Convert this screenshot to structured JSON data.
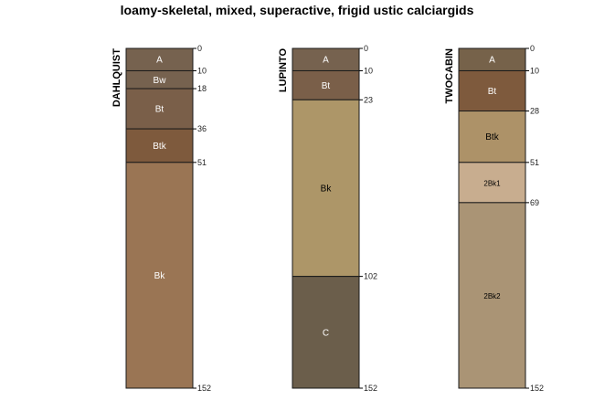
{
  "title": "loamy-skeletal, mixed, superactive, frigid ustic calciargids",
  "profiles": [
    {
      "name": "DAHLQUIST",
      "depth_max": 152,
      "horizons": [
        {
          "label": "A",
          "top": 0,
          "bottom": 10,
          "color": "#76624f",
          "text_color": "#ffffff"
        },
        {
          "label": "Bw",
          "top": 10,
          "bottom": 18,
          "color": "#76624f",
          "text_color": "#ffffff"
        },
        {
          "label": "Bt",
          "top": 18,
          "bottom": 36,
          "color": "#7a5f49",
          "text_color": "#ffffff"
        },
        {
          "label": "Btk",
          "top": 36,
          "bottom": 51,
          "color": "#7e5a3d",
          "text_color": "#ffffff"
        },
        {
          "label": "Bk",
          "top": 51,
          "bottom": 152,
          "color": "#9a7554",
          "text_color": "#ffffff"
        }
      ],
      "depth_ticks": [
        "0",
        "10",
        "18",
        "36",
        "51",
        "152"
      ]
    },
    {
      "name": "LUPINTO",
      "depth_max": 152,
      "horizons": [
        {
          "label": "A",
          "top": 0,
          "bottom": 10,
          "color": "#76624f",
          "text_color": "#ffffff"
        },
        {
          "label": "Bt",
          "top": 10,
          "bottom": 23,
          "color": "#7a5f49",
          "text_color": "#ffffff"
        },
        {
          "label": "Bk",
          "top": 23,
          "bottom": 102,
          "color": "#ad9668",
          "text_color": "#000000"
        },
        {
          "label": "C",
          "top": 102,
          "bottom": 152,
          "color": "#6b5e4b",
          "text_color": "#ffffff"
        }
      ],
      "depth_ticks": [
        "0",
        "10",
        "23",
        "102",
        "152"
      ]
    },
    {
      "name": "TWOCABIN",
      "depth_max": 152,
      "horizons": [
        {
          "label": "A",
          "top": 0,
          "bottom": 10,
          "color": "#76624a",
          "text_color": "#ffffff"
        },
        {
          "label": "Bt",
          "top": 10,
          "bottom": 28,
          "color": "#7e5a3d",
          "text_color": "#ffffff"
        },
        {
          "label": "Btk",
          "top": 28,
          "bottom": 51,
          "color": "#ad9268",
          "text_color": "#000000"
        },
        {
          "label": "2Bk1",
          "top": 51,
          "bottom": 69,
          "color": "#c8ad8f",
          "text_color": "#000000"
        },
        {
          "label": "2Bk2",
          "top": 69,
          "bottom": 152,
          "color": "#aa9475",
          "text_color": "#000000"
        }
      ],
      "depth_ticks": [
        "0",
        "10",
        "28",
        "51",
        "69",
        "152"
      ]
    }
  ]
}
